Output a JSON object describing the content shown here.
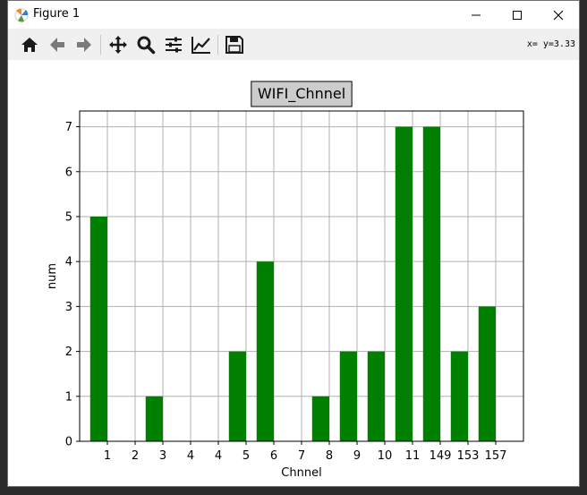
{
  "window": {
    "title": "Figure 1",
    "coord_readout": "x= y=3.33"
  },
  "toolbar": {
    "buttons": [
      "home-icon",
      "back-arrow-icon",
      "forward-arrow-icon",
      "pan-move-icon",
      "zoom-magnifier-icon",
      "configure-subplots-icon",
      "edit-axis-icon",
      "save-floppy-icon"
    ]
  },
  "colors": {
    "bar": "#008000",
    "grid": "#b0b0b0",
    "title_box_fill": "#cccccc"
  },
  "chart_data": {
    "type": "bar",
    "title": "WIFI_Chnnel",
    "xlabel": "Chnnel",
    "ylabel": "num",
    "categories": [
      "1",
      "2",
      "3",
      "4",
      "4",
      "5",
      "6",
      "7",
      "8",
      "9",
      "10",
      "11",
      "149",
      "153",
      "157"
    ],
    "values": [
      5,
      0,
      1,
      0,
      0,
      2,
      4,
      0,
      1,
      2,
      2,
      7,
      7,
      2,
      3
    ],
    "yticks": [
      0,
      1,
      2,
      3,
      4,
      5,
      6,
      7
    ],
    "ylim": [
      0,
      7.35
    ],
    "grid": true
  }
}
